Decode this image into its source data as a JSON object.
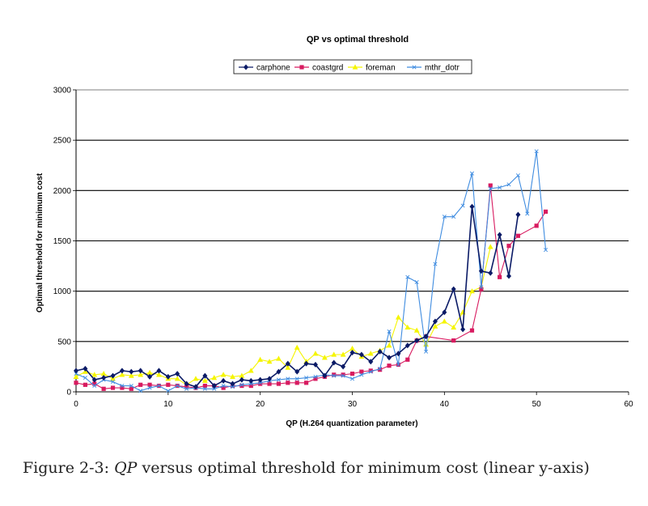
{
  "chart_data": {
    "type": "line",
    "title": "QP vs optimal threshold",
    "xlabel": "QP (H.264 quantization parameter)",
    "ylabel": "Optimal threshold for minimum cost",
    "xlim": [
      0,
      60
    ],
    "ylim": [
      0,
      3000
    ],
    "xticks": [
      0,
      10,
      20,
      30,
      40,
      50,
      60
    ],
    "yticks": [
      0,
      500,
      1000,
      1500,
      2000,
      2500,
      3000
    ],
    "grid": "horizontal major lines",
    "legend_position": "top-center",
    "x": [
      0,
      1,
      2,
      3,
      4,
      5,
      6,
      7,
      8,
      9,
      10,
      11,
      12,
      13,
      14,
      15,
      16,
      17,
      18,
      19,
      20,
      21,
      22,
      23,
      24,
      25,
      26,
      27,
      28,
      29,
      30,
      31,
      32,
      33,
      34,
      35,
      36,
      37,
      38,
      39,
      40,
      41,
      42,
      43,
      44,
      45,
      46,
      47,
      48,
      49,
      50,
      51
    ],
    "series": [
      {
        "name": "carphone",
        "color": "#0a1a66",
        "marker": "diamond",
        "values": [
          210,
          230,
          120,
          140,
          160,
          210,
          200,
          210,
          150,
          210,
          150,
          180,
          80,
          50,
          160,
          60,
          110,
          80,
          120,
          110,
          120,
          130,
          200,
          280,
          200,
          280,
          270,
          160,
          290,
          250,
          390,
          370,
          300,
          400,
          340,
          380,
          460,
          510,
          550,
          700,
          790,
          1020,
          620,
          1840,
          1200,
          1180,
          1560,
          1150,
          1760,
          null,
          null,
          null
        ]
      },
      {
        "name": "coastgrd",
        "color": "#d81b60",
        "marker": "square",
        "values": [
          90,
          70,
          80,
          30,
          40,
          40,
          30,
          70,
          70,
          60,
          70,
          60,
          50,
          40,
          60,
          60,
          40,
          60,
          60,
          60,
          80,
          80,
          80,
          90,
          90,
          90,
          130,
          150,
          170,
          170,
          180,
          200,
          210,
          220,
          260,
          270,
          320,
          510,
          550,
          null,
          null,
          510,
          null,
          610,
          1020,
          2050,
          1140,
          1450,
          1550,
          null,
          1650,
          1790
        ]
      },
      {
        "name": "foreman",
        "color": "#f5f500",
        "marker": "triangle",
        "values": [
          150,
          200,
          170,
          180,
          130,
          170,
          160,
          170,
          190,
          170,
          130,
          130,
          70,
          130,
          110,
          140,
          170,
          150,
          160,
          210,
          320,
          300,
          330,
          240,
          440,
          300,
          380,
          340,
          370,
          370,
          430,
          350,
          380,
          410,
          460,
          740,
          640,
          610,
          470,
          650,
          700,
          640,
          790,
          1000,
          1040,
          1440,
          null,
          null,
          null,
          null,
          null,
          null
        ]
      },
      {
        "name": "mthr_dotr",
        "color": "#3f8ce0",
        "marker": "x",
        "values": [
          180,
          140,
          60,
          120,
          100,
          60,
          60,
          10,
          40,
          60,
          10,
          60,
          30,
          40,
          30,
          30,
          60,
          50,
          70,
          80,
          90,
          110,
          120,
          130,
          130,
          140,
          150,
          170,
          160,
          160,
          130,
          170,
          200,
          230,
          600,
          270,
          1140,
          1090,
          400,
          1270,
          1740,
          1740,
          1850,
          2170,
          1040,
          2020,
          2030,
          2060,
          2150,
          1770,
          2390,
          1410
        ]
      }
    ]
  },
  "caption": {
    "prefix": "Figure 2-3: ",
    "qp": "QP",
    "suffix": " versus optimal threshold for minimum cost (linear y-axis)"
  }
}
